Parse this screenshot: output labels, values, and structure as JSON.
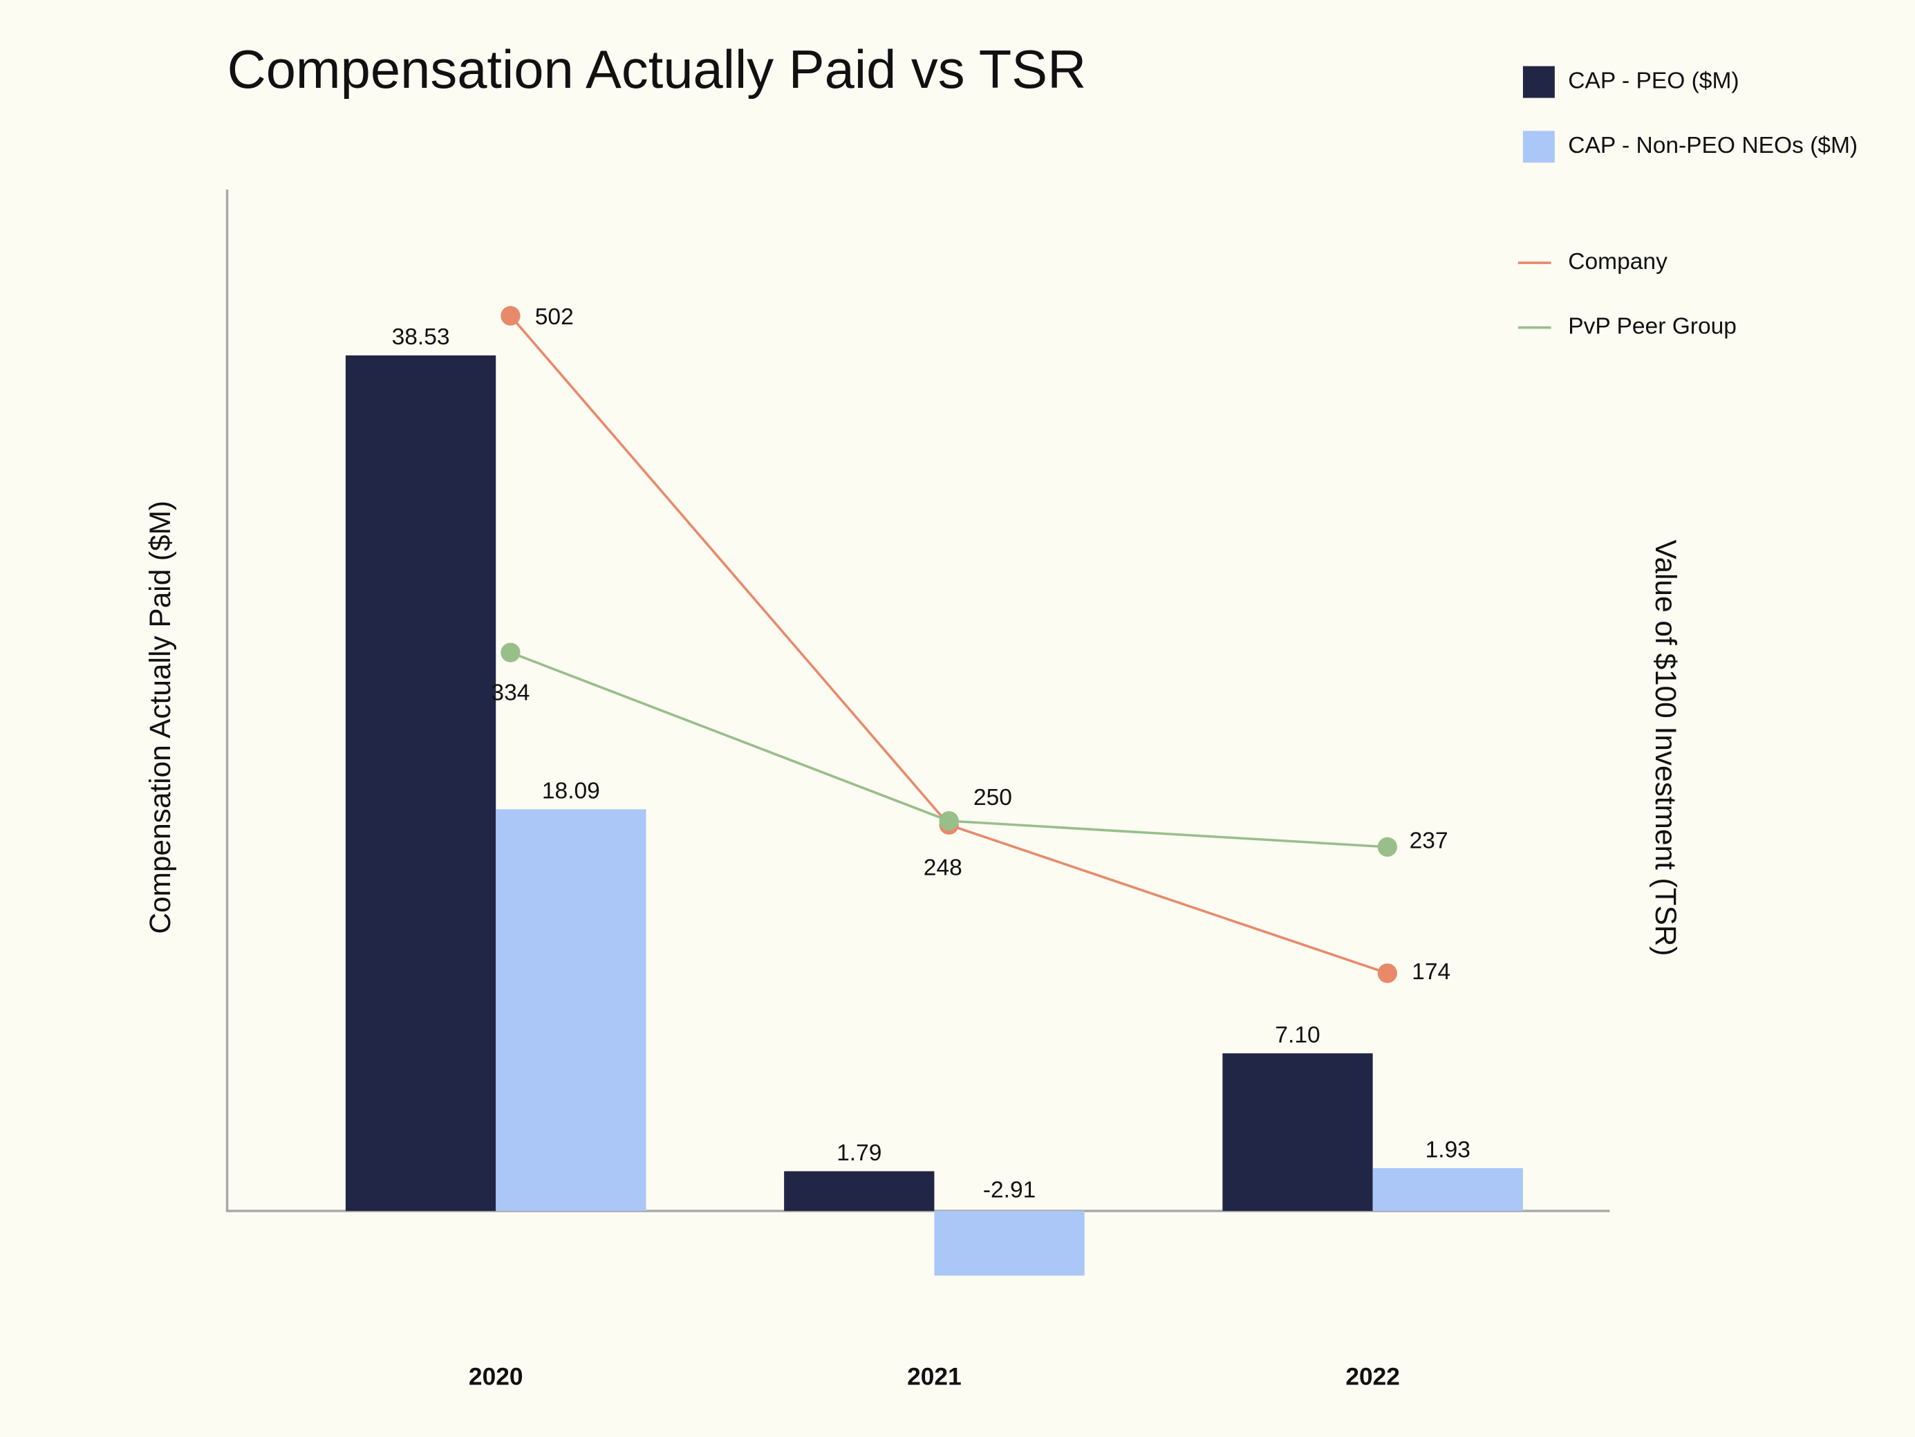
{
  "chart_data": {
    "type": "bar",
    "title": "Compensation Actually Paid vs TSR",
    "y_label": "Compensation Actually Paid ($M)",
    "y2_label": "Value of $100 Investment (TSR)",
    "categories": [
      "2020",
      "2021",
      "2022"
    ],
    "series": [
      {
        "name": "CAP - PEO ($M)",
        "color": "#212646",
        "values": [
          38.53,
          1.79,
          7.1
        ],
        "value_labels": [
          "38.53",
          "1.79",
          "7.10"
        ]
      },
      {
        "name": "CAP - Non-PEO NEOs ($M)",
        "color": "#abc7f8",
        "values": [
          18.09,
          -2.91,
          1.93
        ],
        "value_labels": [
          "18.09",
          "-2.91",
          "1.93"
        ]
      },
      {
        "name": "Company",
        "type": "line",
        "axis": "y2",
        "color": "#e8896a",
        "values": [
          502,
          248,
          174
        ]
      },
      {
        "name": "PvP Peer Group",
        "type": "line",
        "axis": "y2",
        "color": "#98bf8a",
        "values": [
          334,
          250,
          237
        ]
      }
    ],
    "ylim": [
      -5,
      46
    ],
    "y2lim": [
      0,
      565
    ],
    "grid": false
  }
}
